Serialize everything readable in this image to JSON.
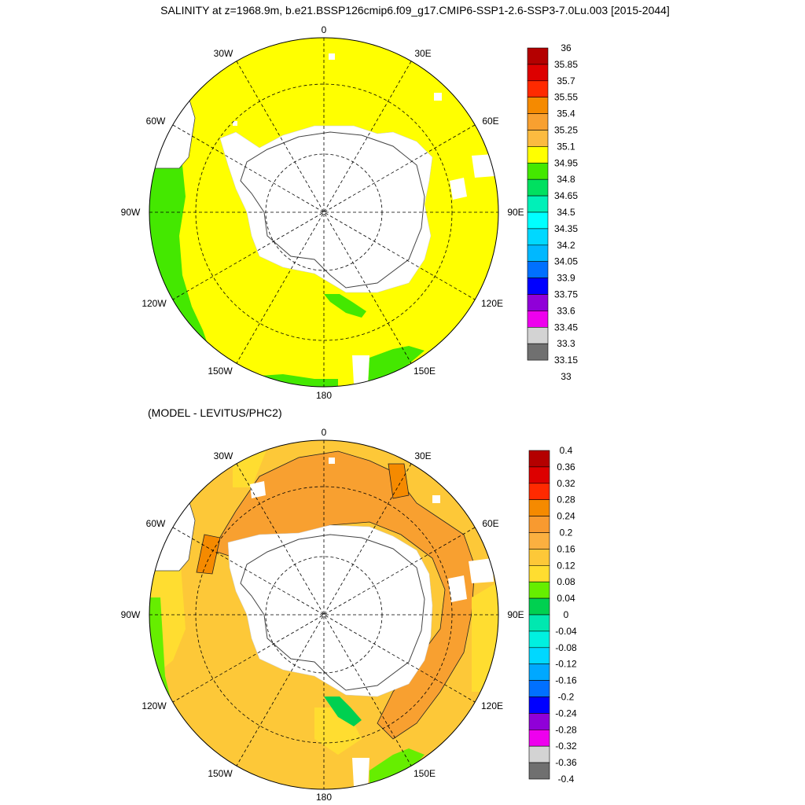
{
  "title": "SALINITY at z=1968.9m, b.e21.BSSP126cmip6.f09_g17.CMIP6-SSP1-2.6-SSP3-7.0Lu.003 [2015-2044]",
  "subtitle": "(MODEL - LEVITUS/PHC2)",
  "longitude_labels": {
    "top": "0",
    "top_right": "30E",
    "right_upper": "60E",
    "right": "90E",
    "right_lower": "120E",
    "bottom_right": "150E",
    "bottom": "180",
    "bottom_left": "150W",
    "left_lower": "120W",
    "left": "90W",
    "left_upper": "60W",
    "top_left": "30W"
  },
  "map_top": {
    "name": "Model salinity, polar stereographic (South Pole)",
    "colorbar": {
      "labels": [
        "36",
        "35.85",
        "35.7",
        "35.55",
        "35.4",
        "35.25",
        "35.1",
        "34.95",
        "34.8",
        "34.65",
        "34.5",
        "34.35",
        "34.2",
        "34.05",
        "33.9",
        "33.75",
        "33.6",
        "33.45",
        "33.3",
        "33.15",
        "33"
      ],
      "colors": [
        "#b40000",
        "#dd0000",
        "#ff2a00",
        "#f58a00",
        "#f8a030",
        "#fbbb40",
        "#ffff00",
        "#44e800",
        "#00e060",
        "#00f0b8",
        "#00ffff",
        "#00d8ff",
        "#00b8ff",
        "#0070ff",
        "#0000ff",
        "#9000d8",
        "#ee00ee",
        "#d3d3d3",
        "#707070"
      ],
      "dominant_color": "#ffff00",
      "secondary_color": "#44e800"
    }
  },
  "map_bottom": {
    "name": "Model minus Levitus/PHC2 salinity difference",
    "colorbar": {
      "labels": [
        "0.4",
        "0.36",
        "0.32",
        "0.28",
        "0.24",
        "0.2",
        "0.16",
        "0.12",
        "0.08",
        "0.04",
        "0",
        "-0.04",
        "-0.08",
        "-0.12",
        "-0.16",
        "-0.2",
        "-0.24",
        "-0.28",
        "-0.32",
        "-0.36",
        "-0.4"
      ],
      "colors": [
        "#b40000",
        "#dd0000",
        "#ff2a00",
        "#f58a00",
        "#f89a30",
        "#fbb040",
        "#fdc838",
        "#ffdd30",
        "#66ee00",
        "#00d050",
        "#00e8b0",
        "#00f0e0",
        "#00d8ff",
        "#00a8ff",
        "#0070ff",
        "#0000ff",
        "#9000d8",
        "#ee00ee",
        "#d3d3d3",
        "#707070"
      ],
      "dominant_color": "#fdc838",
      "secondary_color": "#f8a030"
    }
  },
  "colors": {
    "land": "#ffffff",
    "coastline": "#444444",
    "grid": "#000000"
  }
}
